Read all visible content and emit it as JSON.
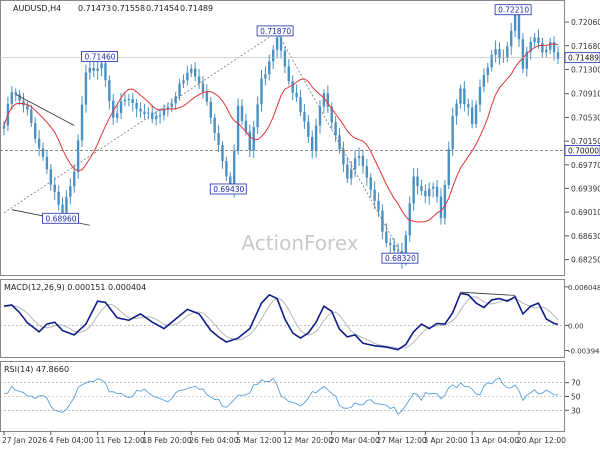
{
  "chart_data": [
    {
      "type": "line",
      "panel": "price",
      "symbol_label": "AUDUSD,H4",
      "ohlc": [
        "0.71473",
        "0.71558",
        "0.71454",
        "0.71489"
      ],
      "watermark": "ActionForex",
      "ylim": [
        0.6805,
        0.7235
      ],
      "y_ticks": [
        "0.72060",
        "0.71680",
        "0.71300",
        "0.70910",
        "0.70530",
        "0.70150",
        "0.69770",
        "0.69390",
        "0.69010",
        "0.68630",
        "0.68250"
      ],
      "last_price_label": "0.71489",
      "last_price": 0.71489,
      "level_label": "0.70000",
      "level": 0.7,
      "grid": false,
      "annotations": [
        {
          "text": "0.72210",
          "value": 0.7221,
          "bar": 131
        },
        {
          "text": "0.71870",
          "value": 0.7187,
          "bar": 70
        },
        {
          "text": "0.71460",
          "value": 0.7146,
          "bar": 25
        },
        {
          "text": "0.69430",
          "value": 0.6943,
          "bar": 58
        },
        {
          "text": "0.68960",
          "value": 0.6896,
          "bar": 15
        },
        {
          "text": "0.68320",
          "value": 0.6832,
          "bar": 102
        }
      ],
      "close_anchors": [
        [
          0,
          0.704
        ],
        [
          2,
          0.7093
        ],
        [
          6,
          0.706
        ],
        [
          10,
          0.699
        ],
        [
          15,
          0.6896
        ],
        [
          18,
          0.696
        ],
        [
          21,
          0.712
        ],
        [
          25,
          0.7146
        ],
        [
          28,
          0.706
        ],
        [
          32,
          0.708
        ],
        [
          36,
          0.705
        ],
        [
          40,
          0.706
        ],
        [
          44,
          0.709
        ],
        [
          48,
          0.713
        ],
        [
          52,
          0.708
        ],
        [
          55,
          0.701
        ],
        [
          58,
          0.6943
        ],
        [
          60,
          0.707
        ],
        [
          63,
          0.7
        ],
        [
          66,
          0.711
        ],
        [
          70,
          0.7187
        ],
        [
          73,
          0.712
        ],
        [
          76,
          0.706
        ],
        [
          79,
          0.7
        ],
        [
          82,
          0.71
        ],
        [
          85,
          0.703
        ],
        [
          88,
          0.696
        ],
        [
          91,
          0.699
        ],
        [
          94,
          0.693
        ],
        [
          98,
          0.686
        ],
        [
          102,
          0.6832
        ],
        [
          105,
          0.695
        ],
        [
          108,
          0.692
        ],
        [
          110,
          0.694
        ],
        [
          112,
          0.69
        ],
        [
          115,
          0.706
        ],
        [
          117,
          0.71
        ],
        [
          120,
          0.704
        ],
        [
          123,
          0.712
        ],
        [
          126,
          0.716
        ],
        [
          128,
          0.715
        ],
        [
          131,
          0.7221
        ],
        [
          133,
          0.714
        ],
        [
          136,
          0.718
        ],
        [
          138,
          0.715
        ],
        [
          140,
          0.717
        ],
        [
          142,
          0.7149
        ]
      ]
    },
    {
      "type": "line",
      "panel": "macd",
      "label": "MACD(12,26,9) 0.000151 0.000404",
      "ylim": [
        -0.0048,
        0.0068
      ],
      "y_ticks": [
        "0.006048",
        "0.00",
        "-0.00394"
      ],
      "zero_label": "0.00",
      "grid": false,
      "macd_anchors": [
        [
          0,
          0.003
        ],
        [
          2,
          0.0032
        ],
        [
          4,
          0.002
        ],
        [
          6,
          0.0004
        ],
        [
          9,
          -0.001
        ],
        [
          11,
          0.0002
        ],
        [
          13,
          0.0005
        ],
        [
          15,
          -0.0008
        ],
        [
          18,
          -0.0015
        ],
        [
          21,
          0.0002
        ],
        [
          24,
          0.0038
        ],
        [
          26,
          0.0036
        ],
        [
          29,
          0.0012
        ],
        [
          32,
          0.0008
        ],
        [
          35,
          0.0018
        ],
        [
          38,
          0.0005
        ],
        [
          41,
          -0.0005
        ],
        [
          44,
          0.001
        ],
        [
          47,
          0.0025
        ],
        [
          50,
          0.0018
        ],
        [
          53,
          -0.0008
        ],
        [
          55,
          -0.0018
        ],
        [
          57,
          -0.0026
        ],
        [
          60,
          -0.002
        ],
        [
          63,
          -0.0005
        ],
        [
          66,
          0.0035
        ],
        [
          68,
          0.0048
        ],
        [
          70,
          0.0042
        ],
        [
          72,
          0.001
        ],
        [
          74,
          -0.0012
        ],
        [
          76,
          -0.002
        ],
        [
          78,
          -0.0012
        ],
        [
          80,
          0.0005
        ],
        [
          82,
          0.003
        ],
        [
          84,
          0.0022
        ],
        [
          86,
          -0.0006
        ],
        [
          88,
          -0.0018
        ],
        [
          90,
          -0.0015
        ],
        [
          92,
          -0.0028
        ],
        [
          95,
          -0.0032
        ],
        [
          98,
          -0.0034
        ],
        [
          101,
          -0.0038
        ],
        [
          103,
          -0.003
        ],
        [
          105,
          -0.001
        ],
        [
          107,
          0.0002
        ],
        [
          109,
          -0.0005
        ],
        [
          111,
          0.0003
        ],
        [
          113,
          0.0002
        ],
        [
          115,
          0.002
        ],
        [
          117,
          0.005
        ],
        [
          119,
          0.0048
        ],
        [
          121,
          0.0035
        ],
        [
          123,
          0.0028
        ],
        [
          125,
          0.004
        ],
        [
          127,
          0.0042
        ],
        [
          129,
          0.0038
        ],
        [
          131,
          0.0045
        ],
        [
          133,
          0.0018
        ],
        [
          135,
          0.003
        ],
        [
          137,
          0.0035
        ],
        [
          139,
          0.001
        ],
        [
          141,
          0.0003
        ],
        [
          142,
          0.00015
        ]
      ]
    },
    {
      "type": "line",
      "panel": "rsi",
      "label": "RSI(14) 47.8660",
      "ylim": [
        0,
        100
      ],
      "y_ticks": [
        "70",
        "50",
        "30"
      ],
      "reference_lines": [
        70,
        50,
        30
      ],
      "grid": false,
      "rsi_anchors": [
        [
          0,
          55
        ],
        [
          2,
          65
        ],
        [
          5,
          50
        ],
        [
          8,
          45
        ],
        [
          10,
          48
        ],
        [
          13,
          35
        ],
        [
          15,
          30
        ],
        [
          18,
          52
        ],
        [
          21,
          68
        ],
        [
          24,
          72
        ],
        [
          27,
          60
        ],
        [
          30,
          55
        ],
        [
          33,
          52
        ],
        [
          36,
          58
        ],
        [
          39,
          47
        ],
        [
          42,
          45
        ],
        [
          45,
          62
        ],
        [
          48,
          68
        ],
        [
          51,
          56
        ],
        [
          54,
          45
        ],
        [
          57,
          38
        ],
        [
          60,
          55
        ],
        [
          63,
          60
        ],
        [
          66,
          70
        ],
        [
          69,
          72
        ],
        [
          71,
          56
        ],
        [
          73,
          48
        ],
        [
          76,
          40
        ],
        [
          79,
          52
        ],
        [
          82,
          60
        ],
        [
          85,
          45
        ],
        [
          88,
          36
        ],
        [
          91,
          44
        ],
        [
          94,
          40
        ],
        [
          98,
          32
        ],
        [
          101,
          30
        ],
        [
          103,
          40
        ],
        [
          105,
          58
        ],
        [
          107,
          48
        ],
        [
          109,
          52
        ],
        [
          112,
          46
        ],
        [
          115,
          65
        ],
        [
          117,
          70
        ],
        [
          119,
          68
        ],
        [
          121,
          55
        ],
        [
          124,
          65
        ],
        [
          127,
          72
        ],
        [
          129,
          60
        ],
        [
          131,
          68
        ],
        [
          133,
          50
        ],
        [
          136,
          60
        ],
        [
          138,
          52
        ],
        [
          140,
          56
        ],
        [
          142,
          48
        ]
      ]
    }
  ],
  "x_axis": {
    "tick_labels": [
      "27 Jan 2026",
      "4 Feb 04:00",
      "11 Feb 12:00",
      "18 Feb 20:00",
      "26 Feb 04:00",
      "5 Mar 12:00",
      "12 Mar 20:00",
      "20 Mar 04:00",
      "27 Mar 12:00",
      "3 Apr 20:00",
      "13 Apr 04:00",
      "20 Apr 12:00"
    ],
    "tick_bars": [
      0,
      12,
      24,
      36,
      48,
      60,
      72,
      84,
      96,
      108,
      120,
      132
    ]
  },
  "colors": {
    "candle": "#4a90c2",
    "ma": "#e0343a",
    "macd": "#0f1d8a",
    "signal": "#b8b8b8",
    "rsi": "#5aa0d8",
    "label_border": "#1b2aa8",
    "label_text": "#1b2aa8",
    "axis": "#555555"
  }
}
